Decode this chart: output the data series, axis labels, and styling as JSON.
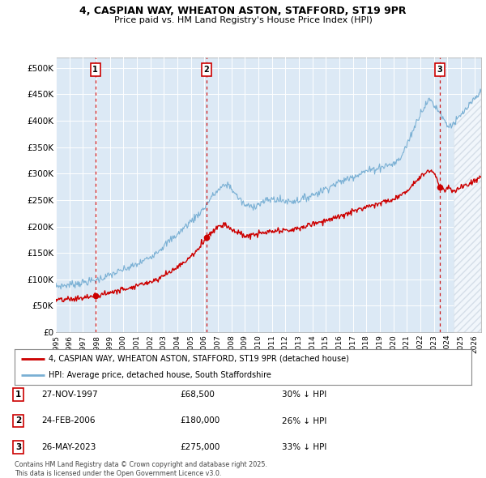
{
  "title_line1": "4, CASPIAN WAY, WHEATON ASTON, STAFFORD, ST19 9PR",
  "title_line2": "Price paid vs. HM Land Registry's House Price Index (HPI)",
  "xlim_start": 1995.0,
  "xlim_end": 2026.5,
  "ylim_min": 0,
  "ylim_max": 520000,
  "yticks": [
    0,
    50000,
    100000,
    150000,
    200000,
    250000,
    300000,
    350000,
    400000,
    450000,
    500000
  ],
  "ytick_labels": [
    "£0",
    "£50K",
    "£100K",
    "£150K",
    "£200K",
    "£250K",
    "£300K",
    "£350K",
    "£400K",
    "£450K",
    "£500K"
  ],
  "xticks": [
    1995,
    1996,
    1997,
    1998,
    1999,
    2000,
    2001,
    2002,
    2003,
    2004,
    2005,
    2006,
    2007,
    2008,
    2009,
    2010,
    2011,
    2012,
    2013,
    2014,
    2015,
    2016,
    2017,
    2018,
    2019,
    2020,
    2021,
    2022,
    2023,
    2024,
    2025,
    2026
  ],
  "sale1_x": 1997.92,
  "sale1_y": 68500,
  "sale2_x": 2006.15,
  "sale2_y": 180000,
  "sale3_x": 2023.42,
  "sale3_y": 275000,
  "sale_color": "#cc0000",
  "hpi_color": "#7ab0d4",
  "hpi_fill_color": "#dce9f5",
  "background_color": "#dce9f5",
  "hatch_start": 2024.5,
  "legend_line1": "4, CASPIAN WAY, WHEATON ASTON, STAFFORD, ST19 9PR (detached house)",
  "legend_line2": "HPI: Average price, detached house, South Staffordshire",
  "table_entries": [
    {
      "num": "1",
      "date": "27-NOV-1997",
      "price": "£68,500",
      "rel": "30% ↓ HPI"
    },
    {
      "num": "2",
      "date": "24-FEB-2006",
      "price": "£180,000",
      "rel": "26% ↓ HPI"
    },
    {
      "num": "3",
      "date": "26-MAY-2023",
      "price": "£275,000",
      "rel": "33% ↓ HPI"
    }
  ],
  "footer": "Contains HM Land Registry data © Crown copyright and database right 2025.\nThis data is licensed under the Open Government Licence v3.0."
}
